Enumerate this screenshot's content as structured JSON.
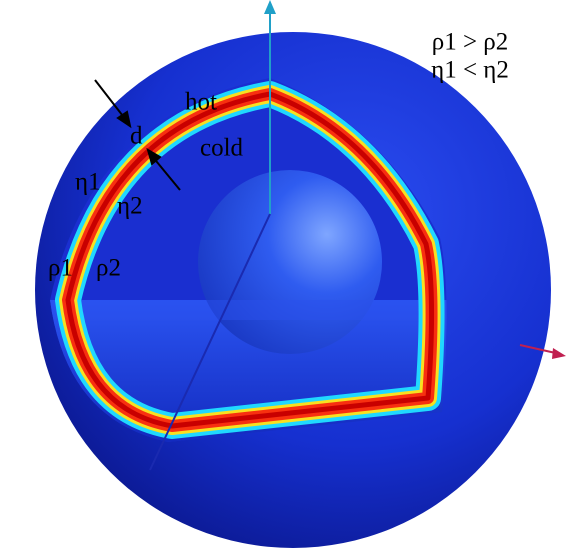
{
  "legend": {
    "density": "ρ1 > ρ2",
    "viscosity": "η1 < η2"
  },
  "labels": {
    "hot": "hot",
    "cold": "cold",
    "thickness": "d",
    "eta1": "η1",
    "eta2": "η2",
    "rho1": "ρ1",
    "rho2": "ρ2"
  }
}
